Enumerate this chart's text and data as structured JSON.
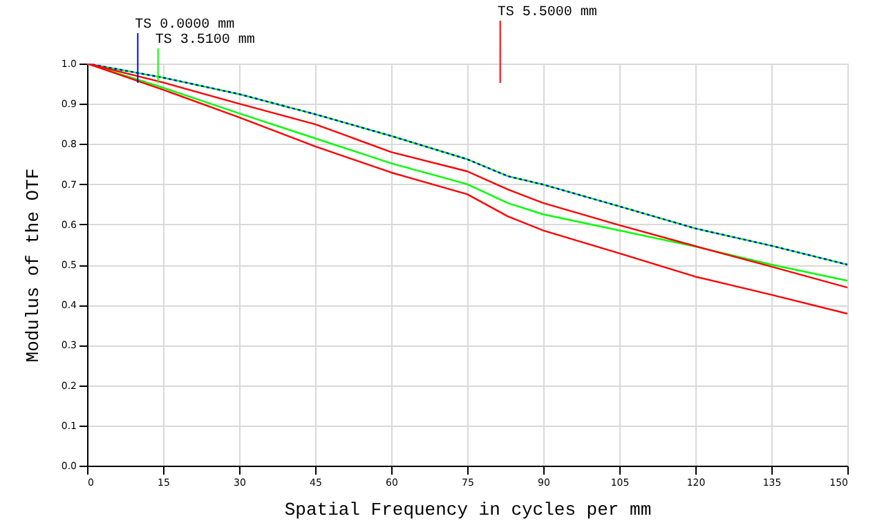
{
  "chart_data": {
    "type": "line",
    "xlabel": "Spatial Frequency in cycles per mm",
    "ylabel": "Modulus of the OTF",
    "x": [
      0,
      15,
      30,
      45,
      60,
      75,
      83,
      90,
      105,
      120,
      135,
      150
    ],
    "series": [
      {
        "name": "TS 3.5100 mm",
        "color": "#00ff00",
        "values": [
          1.0,
          0.965,
          0.924,
          0.874,
          0.82,
          0.762,
          0.72,
          0.699,
          0.645,
          0.59,
          0.547,
          0.5
        ]
      },
      {
        "name": "TS 0.0000 mm",
        "color": "#0000ff",
        "line_style": "dotted",
        "values": [
          1.0,
          0.965,
          0.924,
          0.874,
          0.82,
          0.762,
          0.72,
          0.699,
          0.645,
          0.59,
          0.547,
          0.5
        ]
      },
      {
        "color": "#00ff00",
        "values": [
          1.0,
          0.94,
          0.876,
          0.814,
          0.752,
          0.7,
          0.653,
          0.625,
          0.585,
          0.545,
          0.5,
          0.46
        ]
      },
      {
        "name": "TS 5.5000 mm",
        "color": "#ff0000",
        "values": [
          1.0,
          0.953,
          0.9,
          0.849,
          0.78,
          0.732,
          0.687,
          0.653,
          0.598,
          0.546,
          0.495,
          0.443
        ]
      },
      {
        "color": "#ff0000",
        "values": [
          1.0,
          0.935,
          0.866,
          0.794,
          0.729,
          0.675,
          0.62,
          0.585,
          0.528,
          0.47,
          0.425,
          0.378
        ]
      }
    ],
    "xlim": [
      0,
      150
    ],
    "xticks": [
      0,
      15,
      30,
      45,
      60,
      75,
      90,
      105,
      120,
      135,
      150
    ],
    "ylim": [
      0,
      1
    ],
    "yticks": [
      {
        "value": 0,
        "label": "0.0"
      },
      0.1,
      0.2,
      0.3,
      0.4,
      0.5,
      0.6,
      0.7,
      0.8,
      0.9,
      {
        "value": 1,
        "label": "1.0"
      }
    ],
    "grid": true,
    "legend": "top",
    "marker": "none",
    "line_style": "solid"
  }
}
